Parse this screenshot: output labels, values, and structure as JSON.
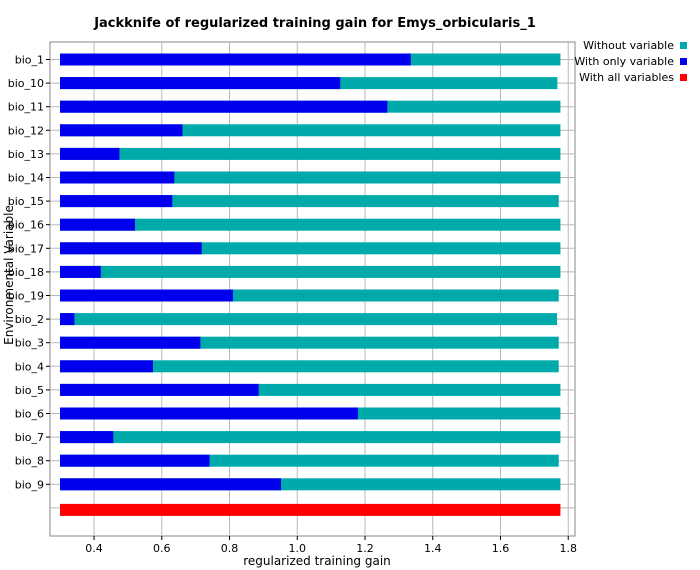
{
  "chart_data": {
    "type": "bar",
    "orientation": "horizontal",
    "title": "Jackknife of regularized training gain for Emys_orbicularis_1",
    "xlabel": "regularized training gain",
    "ylabel": "Environmental Variable",
    "xlim": [
      0.27,
      1.82
    ],
    "xticks": [
      "0.4",
      "0.6",
      "0.8",
      "1.0",
      "1.2",
      "1.4",
      "1.6",
      "1.8"
    ],
    "xtick_values": [
      0.4,
      0.6,
      0.8,
      1.0,
      1.2,
      1.4,
      1.6,
      1.8
    ],
    "grid": true,
    "legend_position": "top-right",
    "categories": [
      "bio_1",
      "bio_10",
      "bio_11",
      "bio_12",
      "bio_13",
      "bio_14",
      "bio_15",
      "bio_16",
      "bio_17",
      "bio_18",
      "bio_19",
      "bio_2",
      "bio_3",
      "bio_4",
      "bio_5",
      "bio_6",
      "bio_7",
      "bio_8",
      "bio_9"
    ],
    "series": [
      {
        "name": "Without variable",
        "color": "#00aaaa",
        "values": [
          1.777,
          1.768,
          1.777,
          1.777,
          1.777,
          1.777,
          1.772,
          1.777,
          1.777,
          1.777,
          1.772,
          1.767,
          1.772,
          1.772,
          1.777,
          1.777,
          1.777,
          1.772,
          1.777
        ]
      },
      {
        "name": "With only variable",
        "color": "#0000ee",
        "values": [
          1.335,
          1.127,
          1.266,
          0.661,
          0.475,
          0.637,
          0.631,
          0.521,
          0.718,
          0.42,
          0.81,
          0.342,
          0.714,
          0.574,
          0.886,
          1.179,
          0.457,
          0.741,
          0.952
        ]
      }
    ],
    "all_variables": {
      "name": "With all variables",
      "color": "#ff0000",
      "value": 1.777
    }
  }
}
